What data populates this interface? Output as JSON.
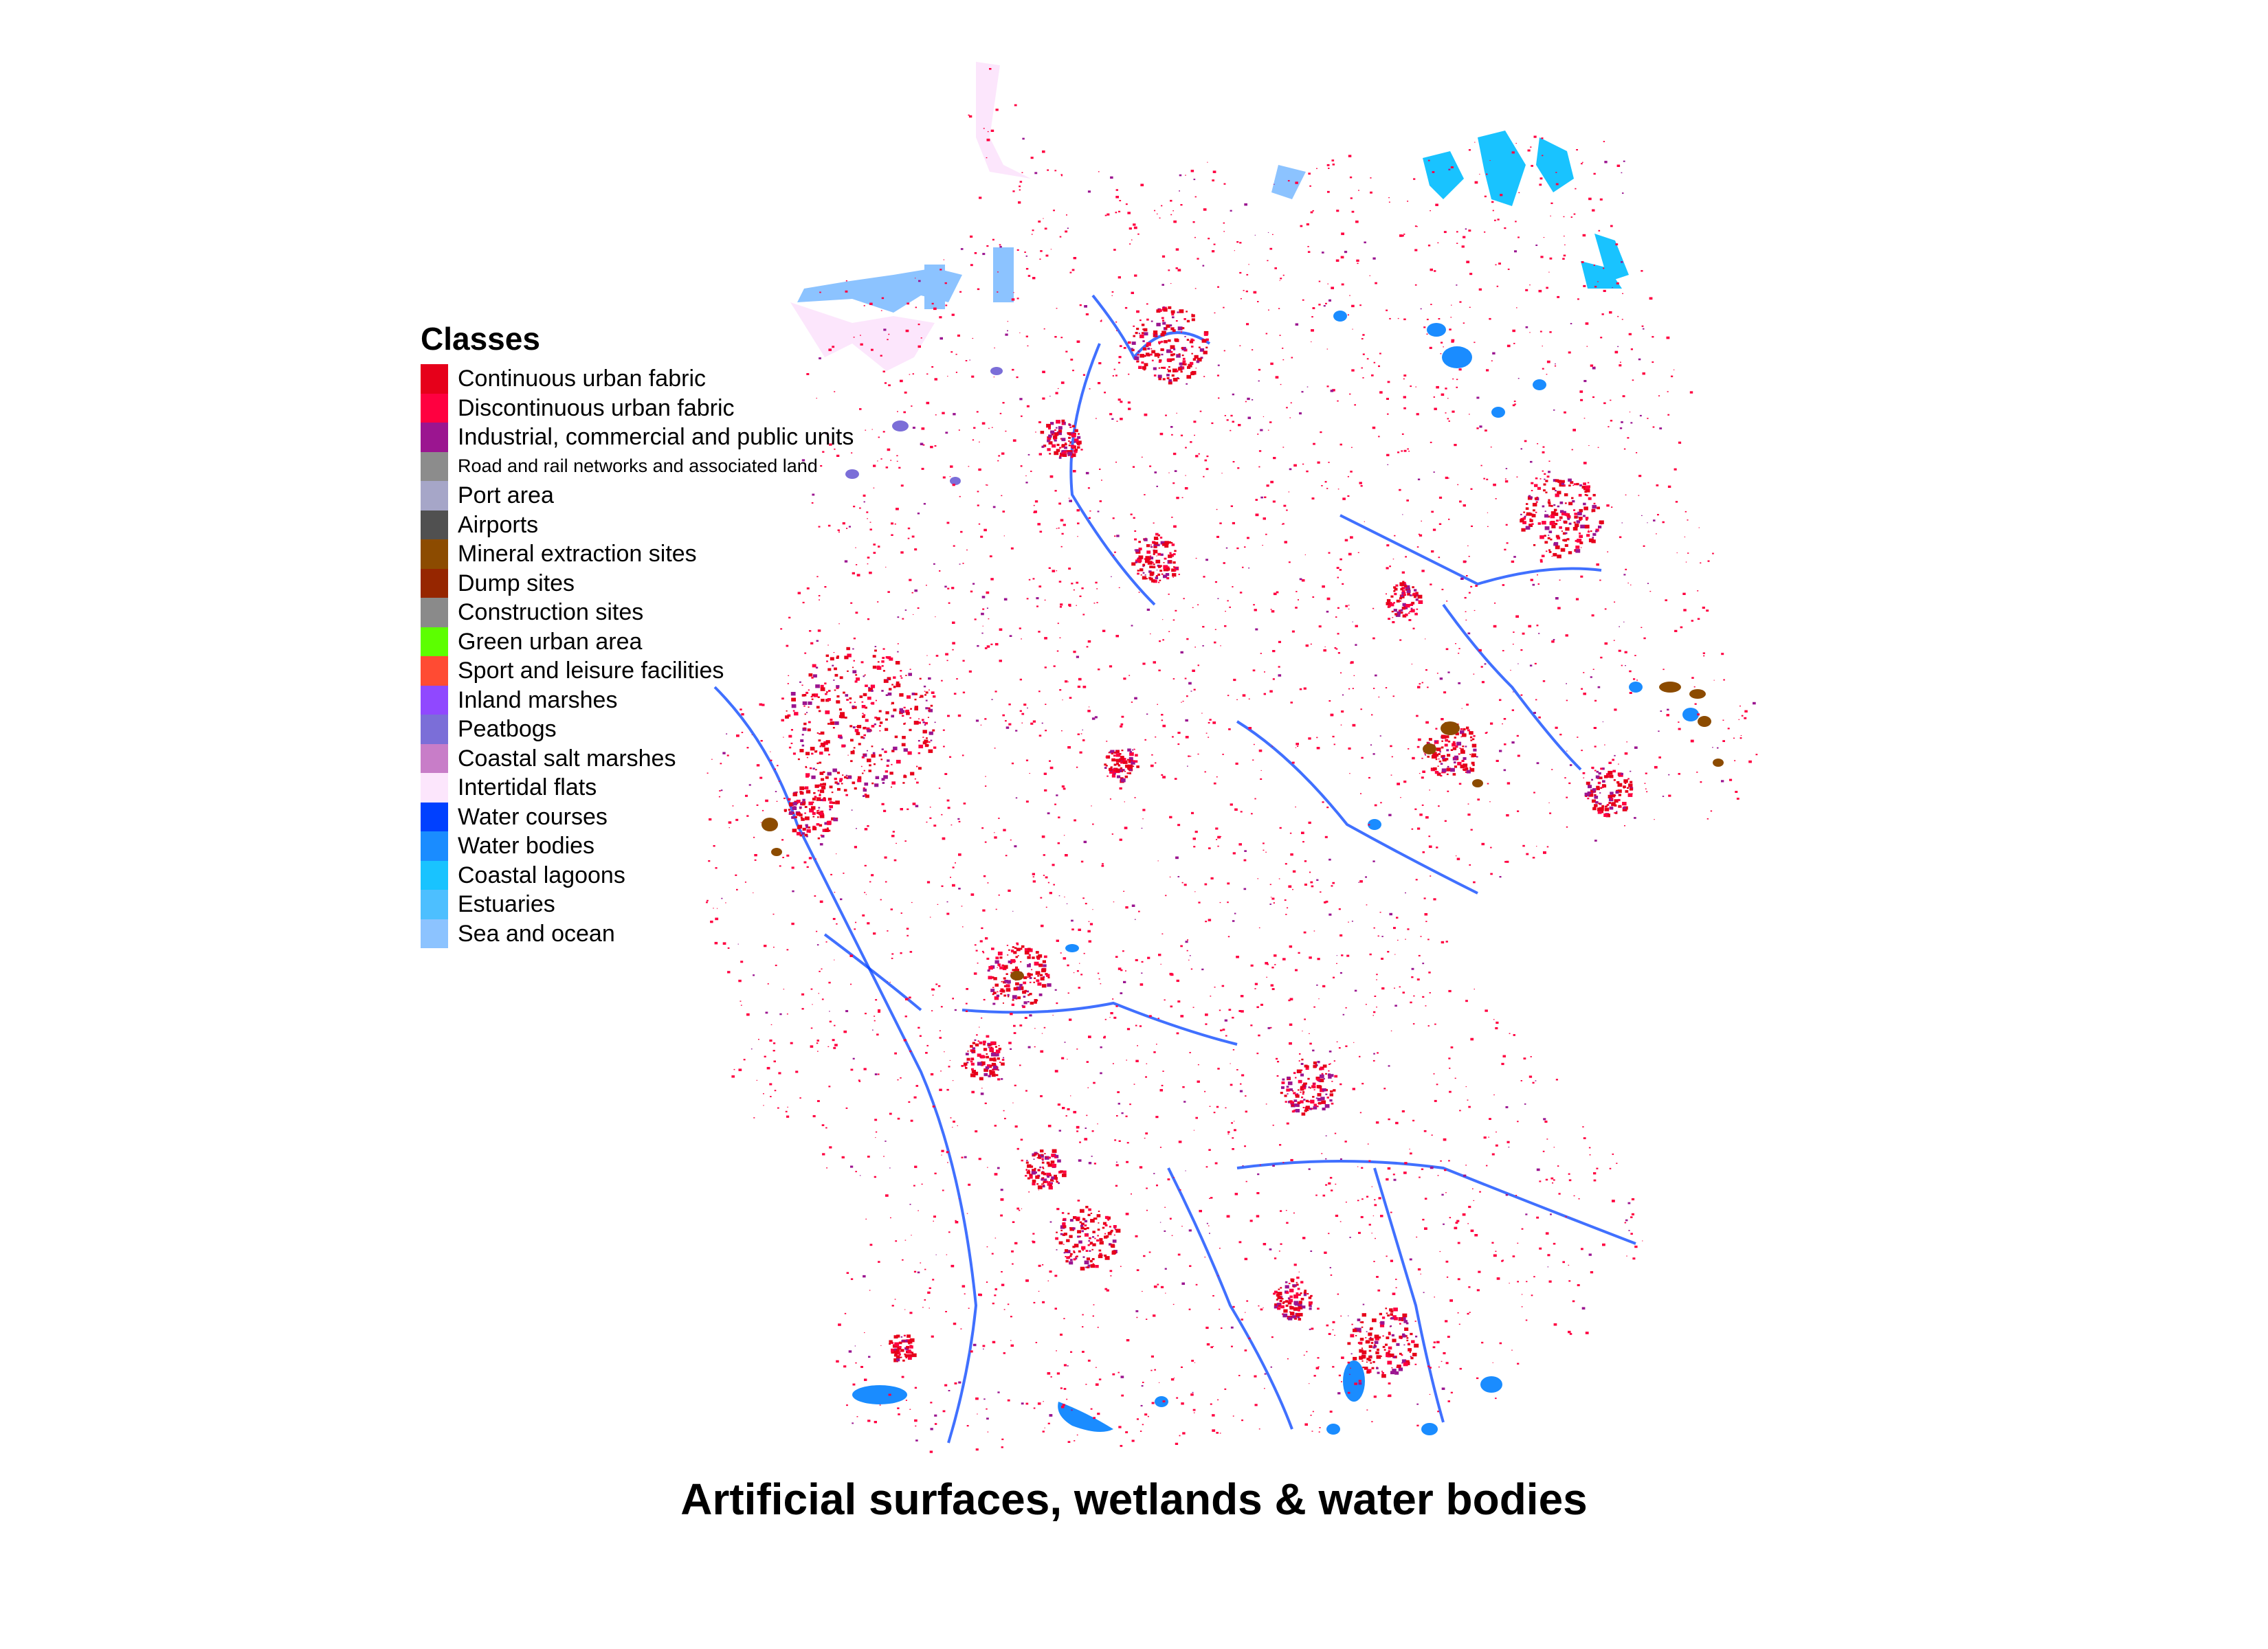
{
  "map": {
    "title": "Artificial surfaces, wetlands & water bodies",
    "legend": {
      "title": "Classes",
      "items": [
        {
          "label": "Continuous urban fabric",
          "color": "#e6001a"
        },
        {
          "label": "Discontinuous urban fabric",
          "color": "#ff0040"
        },
        {
          "label": "Industrial, commercial and public units",
          "color": "#9b1590"
        },
        {
          "label": "Road and rail networks and associated land",
          "color": "#8c8c8c"
        },
        {
          "label": "Port area",
          "color": "#a6a6c8"
        },
        {
          "label": "Airports",
          "color": "#505050"
        },
        {
          "label": "Mineral extraction sites",
          "color": "#8c4b00"
        },
        {
          "label": "Dump sites",
          "color": "#962600"
        },
        {
          "label": "Construction sites",
          "color": "#8a8a8a"
        },
        {
          "label": "Green urban area",
          "color": "#5cff00"
        },
        {
          "label": "Sport and leisure facilities",
          "color": "#ff4b33"
        },
        {
          "label": "Inland marshes",
          "color": "#9048ff"
        },
        {
          "label": "Peatbogs",
          "color": "#7b6ed8"
        },
        {
          "label": "Coastal salt marshes",
          "color": "#c87dc8"
        },
        {
          "label": "Intertidal flats",
          "color": "#fce6fc"
        },
        {
          "label": "Water courses",
          "color": "#0040ff"
        },
        {
          "label": "Water bodies",
          "color": "#1a8cff"
        },
        {
          "label": "Coastal lagoons",
          "color": "#19c3ff"
        },
        {
          "label": "Estuaries",
          "color": "#4dbfff"
        },
        {
          "label": "Sea and ocean",
          "color": "#8cc3ff"
        }
      ]
    }
  }
}
